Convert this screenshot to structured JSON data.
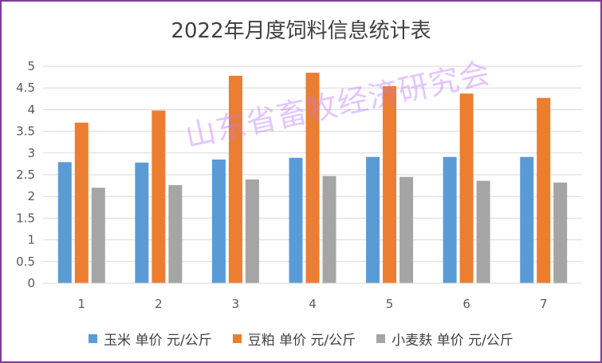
{
  "chart_data": {
    "type": "bar",
    "title": "2022年月度饲料信息统计表",
    "categories": [
      "1",
      "2",
      "3",
      "4",
      "5",
      "6",
      "7"
    ],
    "series": [
      {
        "name": "玉米 单价 元/公斤",
        "color": "#5b9bd5",
        "values": [
          2.79,
          2.78,
          2.85,
          2.89,
          2.91,
          2.91,
          2.91
        ]
      },
      {
        "name": "豆粕 单价 元/公斤",
        "color": "#ed7d31",
        "values": [
          3.7,
          3.98,
          4.78,
          4.85,
          4.54,
          4.37,
          4.27
        ]
      },
      {
        "name": "小麦麸 单价 元/公斤",
        "color": "#a5a5a5",
        "values": [
          2.2,
          2.26,
          2.39,
          2.47,
          2.45,
          2.36,
          2.32
        ]
      }
    ],
    "y_ticks": [
      "0",
      "0.5",
      "1",
      "1.5",
      "2",
      "2.5",
      "3",
      "3.5",
      "4",
      "4.5",
      "5"
    ],
    "ylim": [
      0,
      5
    ],
    "grid": true,
    "legend_position": "bottom"
  },
  "watermark": "山东省畜牧经济研究会"
}
